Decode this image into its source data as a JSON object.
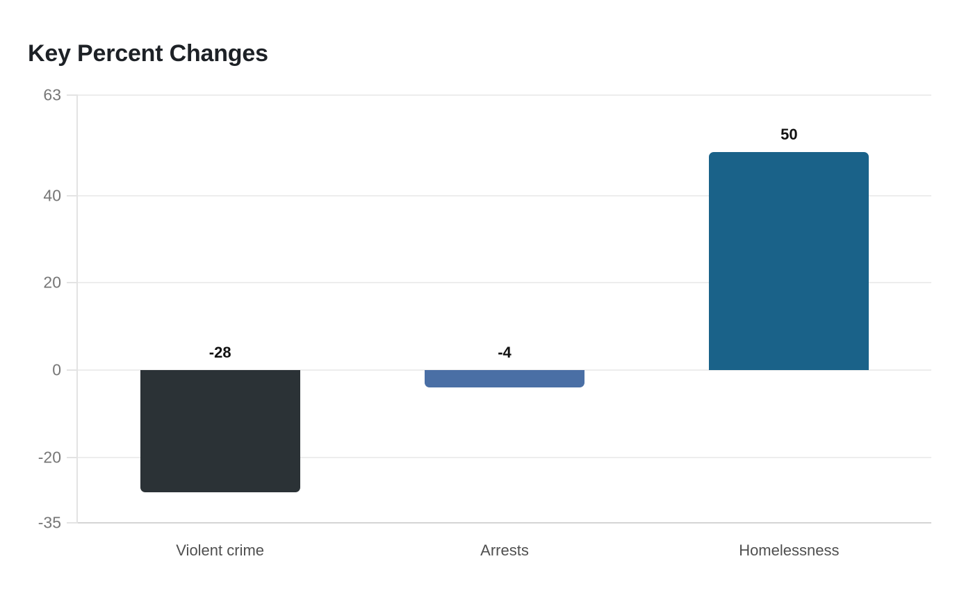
{
  "chart_data": {
    "type": "bar",
    "title": "Key Percent Changes",
    "categories": [
      "Violent crime",
      "Arrests",
      "Homelessness"
    ],
    "values": [
      -28,
      -4,
      50
    ],
    "value_labels": [
      "-28",
      "-4",
      "50"
    ],
    "bar_colors": [
      "#2b3236",
      "#4a6fa5",
      "#1a6289"
    ],
    "xlabel": "",
    "ylabel": "",
    "ylim": [
      -35,
      63
    ],
    "yticks": [
      63,
      40,
      20,
      0,
      -20,
      -35
    ],
    "ytick_labels": [
      "63",
      "40",
      "20",
      "0",
      "-20",
      "-35"
    ],
    "grid": "horizontal-only",
    "legend": "none",
    "colors": {
      "background": "#ffffff",
      "title": "#1d2126",
      "grid_line": "#ededed",
      "axis_line": "#e3e3e3",
      "baseline": "#d4d4d4",
      "ytick_label": "#767676",
      "category_label": "#4f4f4f",
      "value_label": "#111111"
    }
  }
}
